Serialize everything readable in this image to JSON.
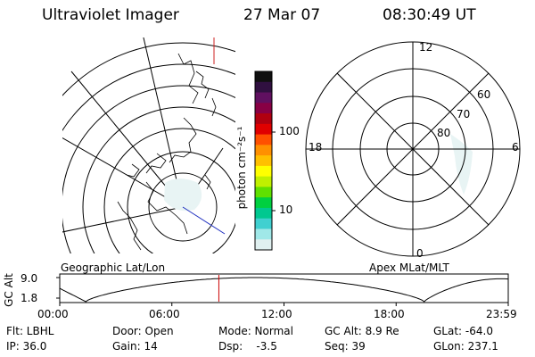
{
  "header": {
    "instrument": "Ultraviolet Imager",
    "date": "27 Mar 07",
    "time": "08:30:49 UT"
  },
  "colorbar": {
    "unit_label": "photon cm⁻²s⁻¹",
    "ticks": [
      "100",
      "10"
    ],
    "colors": [
      "#101010",
      "#301040",
      "#601060",
      "#880044",
      "#b00010",
      "#e00000",
      "#ff5000",
      "#ff9000",
      "#ffc000",
      "#ffff00",
      "#c0f000",
      "#60e000",
      "#00d040",
      "#00c890",
      "#40d0d0",
      "#a0e8e8",
      "#e0f0f0"
    ]
  },
  "geo_panel": {
    "caption": "Geographic Lat/Lon"
  },
  "mlt_panel": {
    "caption": "Apex MLat/MLT",
    "mlt_labels": {
      "top": "12",
      "bottom": "0",
      "left": "18",
      "right": "6"
    },
    "lat_labels": [
      "60",
      "70",
      "80"
    ]
  },
  "altitude_plot": {
    "ylabel": "GC Alt",
    "yticks": [
      "9.0",
      "1.8"
    ],
    "xticks": [
      "00:00",
      "06:00",
      "12:00",
      "18:00",
      "23:59"
    ],
    "current_time_hours": 8.514,
    "marker_color": "#cc0000"
  },
  "footer": {
    "flt": "Flt: LBHL",
    "ip": "IP: 36.0",
    "door": "Door: Open",
    "gain": "Gain: 14",
    "mode": "Mode: Normal",
    "dsp": "Dsp:    -3.5",
    "gcalt": "GC Alt: 8.9 Re",
    "seq": "Seq: 39",
    "glat": "GLat: -64.0",
    "glon": "GLon: 237.1"
  }
}
